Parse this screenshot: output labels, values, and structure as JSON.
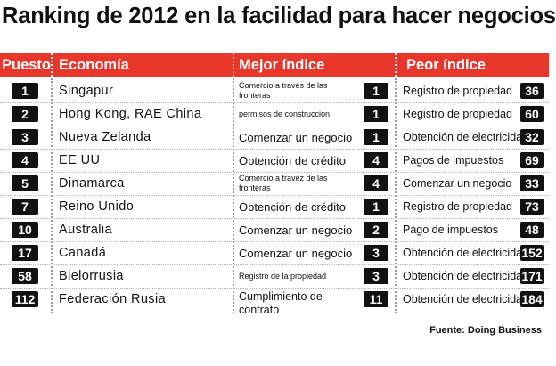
{
  "title": "Ranking de 2012 en la facilidad para hacer negocios",
  "header": {
    "puesto": "Puesto",
    "economia": "Economía",
    "mejor": "Mejor índice",
    "peor": "Peor índice"
  },
  "accent_color": "#e8362a",
  "rows": [
    {
      "puesto": "1",
      "economia": "Singapur",
      "mejor": "Comercio a través de las fronteras",
      "mejor_num": "1",
      "peor": "Registro de propiedad",
      "peor_num": "36"
    },
    {
      "puesto": "2",
      "economia": "Hong Kong, RAE China",
      "mejor": "permisos de construccion",
      "mejor_num": "1",
      "peor": "Registro de propiedad",
      "peor_num": "60"
    },
    {
      "puesto": "3",
      "economia": "Nueva Zelanda",
      "mejor": "Comenzar un negocio",
      "mejor_num": "1",
      "peor": "Obtención de electricidad",
      "peor_num": "32"
    },
    {
      "puesto": "4",
      "economia": "EE UU",
      "mejor": "Obtención de crédito",
      "mejor_num": "4",
      "peor": "Pagos de impuestos",
      "peor_num": "69"
    },
    {
      "puesto": "5",
      "economia": "Dinamarca",
      "mejor": "Comercio a travéz de las fronteras",
      "mejor_num": "4",
      "peor": "Comenzar un negocio",
      "peor_num": "33"
    },
    {
      "puesto": "7",
      "economia": "Reino Unido",
      "mejor": "Obtención de crédito",
      "mejor_num": "1",
      "peor": "Registro de propiedad",
      "peor_num": "73"
    },
    {
      "puesto": "10",
      "economia": "Australia",
      "mejor": "Comenzar un negocio",
      "mejor_num": "2",
      "peor": "Pago de impuestos",
      "peor_num": "48"
    },
    {
      "puesto": "17",
      "economia": "Canadá",
      "mejor": "Comenzar un negocio",
      "mejor_num": "3",
      "peor": "Obtención de electricidad",
      "peor_num": "152"
    },
    {
      "puesto": "58",
      "economia": "Bielorrusia",
      "mejor": "Registro de la propiedad",
      "mejor_num": "3",
      "peor": "Obtención de electricidad",
      "peor_num": "171"
    },
    {
      "puesto": "112",
      "economia": "Federación Rusia",
      "mejor": "Cumplimiento de contrato",
      "mejor_num": "11",
      "peor": "Obtención de electricidad",
      "peor_num": "184"
    }
  ],
  "source": "Fuente: Doing Business"
}
